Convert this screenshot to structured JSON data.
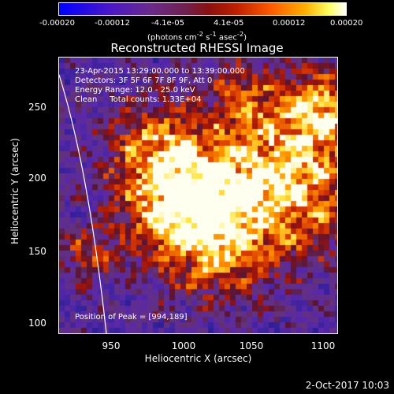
{
  "colorbar": {
    "ticks": [
      "-0.00020",
      "-0.00012",
      "-4.1e-05",
      "4.1e-05",
      "0.00012",
      "0.00020"
    ],
    "units_html": "(photons cm<sup>-2</sup> s<sup>-1</sup> asec<sup>-2</sup>)"
  },
  "title": "Reconstructed RHESSI Image",
  "info": {
    "line1": "23-Apr-2015 13:29:00.000 to 13:39:00.000",
    "line2": "Detectors: 3F 5F 6F 7F 8F 9F, Att 0",
    "line3": "Energy Range: 12.0 - 25.0 keV",
    "line4": "Clean     Total counts: 1.33E+04"
  },
  "peak": "Position of Peak = [994,189]",
  "axes": {
    "xlabel": "Heliocentric X (arcsec)",
    "ylabel": "Heliocentric Y (arcsec)",
    "xticks": [
      "950",
      "1000",
      "1050",
      "1100"
    ],
    "yticks": [
      "250",
      "200",
      "150",
      "100"
    ]
  },
  "timestamp": "2-Oct-2017 10:03"
}
